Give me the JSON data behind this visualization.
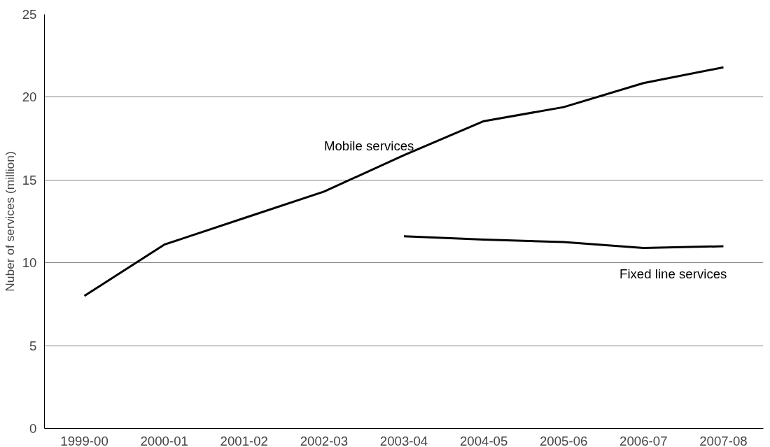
{
  "chart_data": {
    "type": "line",
    "ylabel": "Nuber of services (million)",
    "categories": [
      "1999-00",
      "2000-01",
      "2001-02",
      "2002-03",
      "2003-04",
      "2004-05",
      "2005-06",
      "2006-07",
      "2007-08"
    ],
    "series": [
      {
        "name": "Mobile services",
        "color": "#000000",
        "values": [
          8.0,
          11.1,
          12.7,
          14.3,
          16.5,
          18.55,
          19.4,
          20.85,
          21.8
        ]
      },
      {
        "name": "Fixed line services",
        "color": "#000000",
        "values": [
          null,
          null,
          null,
          null,
          11.6,
          11.4,
          11.25,
          10.9,
          11.0
        ]
      }
    ],
    "ylim": [
      0,
      25
    ],
    "yticks": [
      0,
      5,
      10,
      15,
      20,
      25
    ],
    "grid": "y",
    "legend": false,
    "marker": "none",
    "line_style": "solid"
  }
}
